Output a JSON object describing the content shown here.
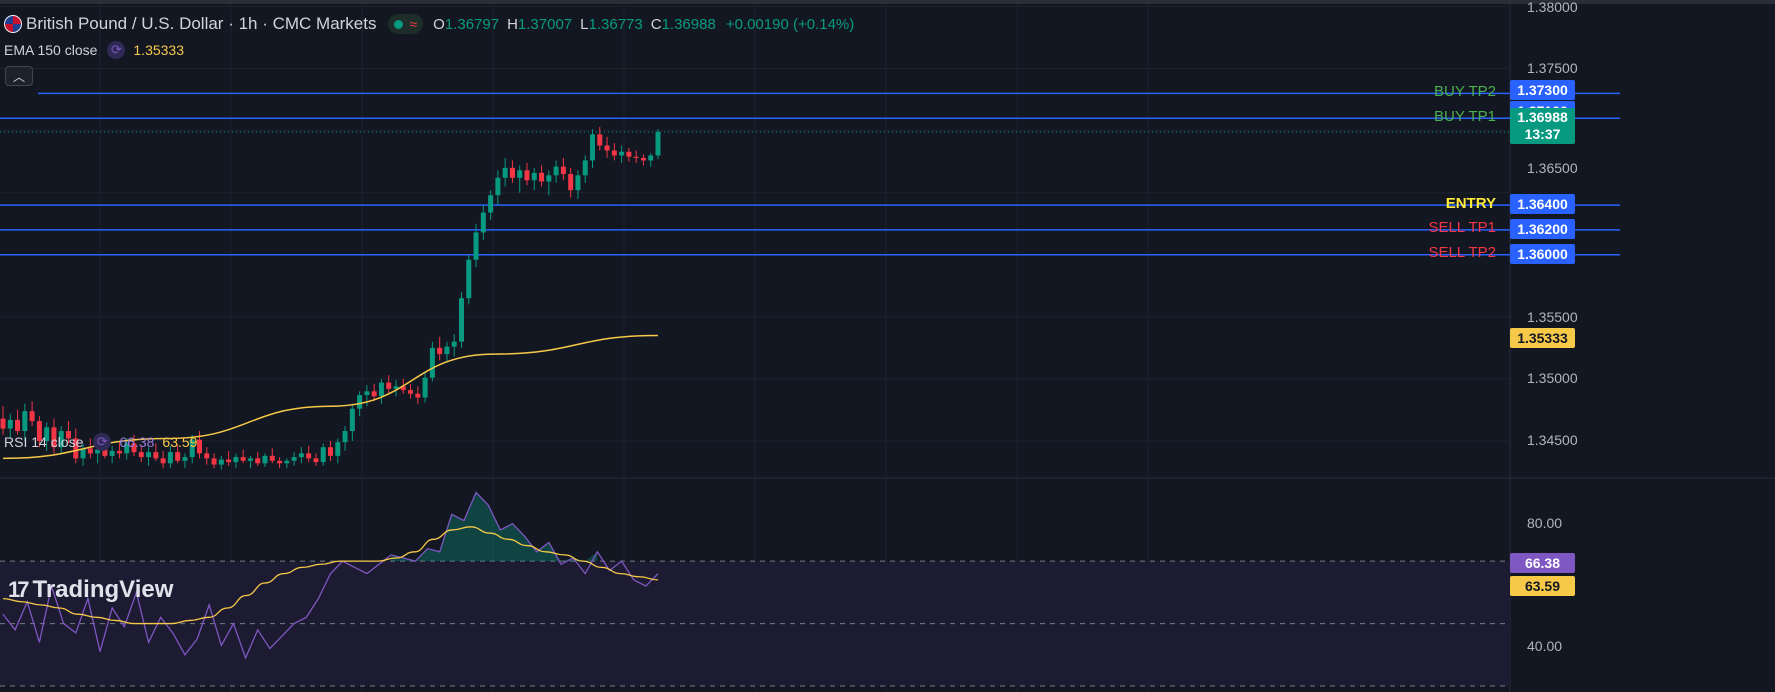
{
  "header": {
    "symbol": "British Pound / U.S. Dollar · 1h · CMC Markets",
    "open_label": "O",
    "open": "1.36797",
    "high_label": "H",
    "high": "1.37007",
    "low_label": "L",
    "low": "1.36773",
    "close_label": "C",
    "close": "1.36988",
    "change": "+0.00190 (+0.14%)",
    "status_icon": "market-open-dot",
    "wave_icon": "wave-icon",
    "flag_icon": "uk-us-flag-icon"
  },
  "ema": {
    "label": "EMA 150 close",
    "value": "1.35333",
    "color": "#f7c948"
  },
  "rsi": {
    "label": "RSI 14 close",
    "value": "66.38",
    "ma_value": "63.59",
    "color": "#7e57c2",
    "ma_color": "#f7c948"
  },
  "price_axis": [
    "1.38000",
    "1.37500",
    "1.36500",
    "1.35500",
    "1.35000",
    "1.34500"
  ],
  "rsi_axis": [
    "80.00",
    "40.00"
  ],
  "levels": [
    {
      "name": "BUY TP2",
      "price": "1.37300",
      "color": "#4caf50"
    },
    {
      "name": "BUY TP1",
      "price": "1.37100",
      "color": "#4caf50"
    },
    {
      "name": "ENTRY",
      "price": "1.36400",
      "color": "#ffeb3b"
    },
    {
      "name": "SELL TP1",
      "price": "1.36200",
      "color": "#f23645"
    },
    {
      "name": "SELL TP2",
      "price": "1.36000",
      "color": "#f23645"
    }
  ],
  "current": {
    "price": "1.36988",
    "countdown": "13:37",
    "color": "#089981"
  },
  "ema_tag": "1.35333",
  "rsi_tag": "66.38",
  "rsi_ma_tag": "63.59",
  "brand": "TradingView",
  "chart_data": {
    "type": "candlestick",
    "ema_last": 1.35333,
    "ylim": [
      1.3425,
      1.3802
    ],
    "candles": [
      [
        1.3468,
        1.3478,
        1.3455,
        1.346
      ],
      [
        1.346,
        1.3472,
        1.3452,
        1.3467
      ],
      [
        1.3467,
        1.3475,
        1.3455,
        1.3458
      ],
      [
        1.3458,
        1.348,
        1.345,
        1.3474
      ],
      [
        1.3474,
        1.3482,
        1.3462,
        1.3466
      ],
      [
        1.3466,
        1.347,
        1.3445,
        1.345
      ],
      [
        1.345,
        1.3465,
        1.3442,
        1.3461
      ],
      [
        1.3461,
        1.3468,
        1.344,
        1.3445
      ],
      [
        1.3445,
        1.3462,
        1.344,
        1.3458
      ],
      [
        1.3458,
        1.3466,
        1.3448,
        1.3452
      ],
      [
        1.3452,
        1.346,
        1.3432,
        1.3436
      ],
      [
        1.3436,
        1.3448,
        1.343,
        1.3444
      ],
      [
        1.3444,
        1.3452,
        1.3436,
        1.344
      ],
      [
        1.344,
        1.3446,
        1.3432,
        1.3443
      ],
      [
        1.3443,
        1.3452,
        1.3436,
        1.3438
      ],
      [
        1.3438,
        1.3446,
        1.3432,
        1.3442
      ],
      [
        1.3442,
        1.3449,
        1.3436,
        1.344
      ],
      [
        1.344,
        1.3452,
        1.3435,
        1.3448
      ],
      [
        1.3448,
        1.3455,
        1.3438,
        1.3441
      ],
      [
        1.3441,
        1.3446,
        1.3433,
        1.3437
      ],
      [
        1.3437,
        1.3445,
        1.343,
        1.3441
      ],
      [
        1.3441,
        1.3448,
        1.3434,
        1.3436
      ],
      [
        1.3436,
        1.3442,
        1.3428,
        1.3432
      ],
      [
        1.3432,
        1.3446,
        1.3428,
        1.3441
      ],
      [
        1.3441,
        1.3447,
        1.3432,
        1.3434
      ],
      [
        1.3434,
        1.344,
        1.3428,
        1.3437
      ],
      [
        1.3437,
        1.3455,
        1.3432,
        1.3451
      ],
      [
        1.3451,
        1.3458,
        1.3436,
        1.344
      ],
      [
        1.344,
        1.3445,
        1.3431,
        1.3436
      ],
      [
        1.3436,
        1.344,
        1.3428,
        1.3431
      ],
      [
        1.3431,
        1.3438,
        1.3427,
        1.3435
      ],
      [
        1.3435,
        1.3442,
        1.343,
        1.3433
      ],
      [
        1.3433,
        1.344,
        1.3428,
        1.3437
      ],
      [
        1.3437,
        1.3443,
        1.3432,
        1.3434
      ],
      [
        1.3434,
        1.3438,
        1.3428,
        1.3436
      ],
      [
        1.3436,
        1.3441,
        1.343,
        1.3432
      ],
      [
        1.3432,
        1.344,
        1.3429,
        1.3438
      ],
      [
        1.3438,
        1.3444,
        1.3432,
        1.3434
      ],
      [
        1.3434,
        1.3437,
        1.3428,
        1.3432
      ],
      [
        1.3432,
        1.3436,
        1.3428,
        1.3434
      ],
      [
        1.3434,
        1.3441,
        1.343,
        1.3437
      ],
      [
        1.3437,
        1.3445,
        1.3432,
        1.344
      ],
      [
        1.344,
        1.3446,
        1.3433,
        1.3436
      ],
      [
        1.3436,
        1.344,
        1.343,
        1.3433
      ],
      [
        1.3433,
        1.3448,
        1.343,
        1.3445
      ],
      [
        1.3445,
        1.345,
        1.3434,
        1.3438
      ],
      [
        1.3438,
        1.3452,
        1.3432,
        1.3449
      ],
      [
        1.3449,
        1.3462,
        1.3442,
        1.3458
      ],
      [
        1.3458,
        1.348,
        1.345,
        1.3476
      ],
      [
        1.3476,
        1.349,
        1.347,
        1.3487
      ],
      [
        1.3487,
        1.3495,
        1.3478,
        1.349
      ],
      [
        1.349,
        1.3496,
        1.3482,
        1.3486
      ],
      [
        1.3486,
        1.35,
        1.348,
        1.3497
      ],
      [
        1.3497,
        1.3503,
        1.3488,
        1.3492
      ],
      [
        1.3492,
        1.3499,
        1.3486,
        1.3494
      ],
      [
        1.3494,
        1.35,
        1.3488,
        1.3491
      ],
      [
        1.3491,
        1.3496,
        1.3484,
        1.3488
      ],
      [
        1.3488,
        1.3494,
        1.348,
        1.3485
      ],
      [
        1.3485,
        1.3505,
        1.3481,
        1.3501
      ],
      [
        1.3501,
        1.353,
        1.3498,
        1.3525
      ],
      [
        1.3525,
        1.3534,
        1.3515,
        1.352
      ],
      [
        1.352,
        1.353,
        1.3514,
        1.3526
      ],
      [
        1.3526,
        1.3536,
        1.3518,
        1.353
      ],
      [
        1.353,
        1.357,
        1.3525,
        1.3565
      ],
      [
        1.3565,
        1.36,
        1.356,
        1.3596
      ],
      [
        1.3596,
        1.3625,
        1.359,
        1.3618
      ],
      [
        1.3618,
        1.364,
        1.3612,
        1.3634
      ],
      [
        1.3634,
        1.3652,
        1.3628,
        1.3648
      ],
      [
        1.3648,
        1.3668,
        1.364,
        1.3662
      ],
      [
        1.3662,
        1.3678,
        1.3655,
        1.367
      ],
      [
        1.367,
        1.3676,
        1.3658,
        1.3662
      ],
      [
        1.3662,
        1.3672,
        1.365,
        1.3668
      ],
      [
        1.3668,
        1.3674,
        1.3656,
        1.366
      ],
      [
        1.366,
        1.367,
        1.3652,
        1.3666
      ],
      [
        1.3666,
        1.3672,
        1.3655,
        1.3659
      ],
      [
        1.3659,
        1.3668,
        1.3648,
        1.3664
      ],
      [
        1.3664,
        1.3676,
        1.3658,
        1.3671
      ],
      [
        1.3671,
        1.3678,
        1.366,
        1.3665
      ],
      [
        1.3665,
        1.367,
        1.3646,
        1.3652
      ],
      [
        1.3652,
        1.3668,
        1.3645,
        1.3664
      ],
      [
        1.3664,
        1.368,
        1.3658,
        1.3676
      ],
      [
        1.3676,
        1.3701,
        1.367,
        1.3697
      ],
      [
        1.3697,
        1.3703,
        1.3684,
        1.3688
      ],
      [
        1.3688,
        1.3695,
        1.3678,
        1.3684
      ],
      [
        1.3684,
        1.369,
        1.3676,
        1.368
      ],
      [
        1.368,
        1.3688,
        1.3674,
        1.3683
      ],
      [
        1.3683,
        1.3686,
        1.3675,
        1.3679
      ],
      [
        1.3679,
        1.3684,
        1.3674,
        1.3678
      ],
      [
        1.3678,
        1.3681,
        1.3672,
        1.3676
      ],
      [
        1.3676,
        1.3682,
        1.3671,
        1.368
      ],
      [
        1.368,
        1.3701,
        1.3677,
        1.3699
      ]
    ],
    "ema": [
      1.3436,
      1.3452,
      1.3478,
      1.352,
      1.3535
    ],
    "rsi": [
      53,
      48,
      57,
      44,
      62,
      50,
      47,
      58,
      41,
      55,
      49,
      60,
      44,
      52,
      47,
      40,
      45,
      56,
      43,
      50,
      39,
      48,
      42,
      46,
      50,
      52,
      58,
      66,
      70,
      68,
      66,
      69,
      72,
      71,
      70,
      74,
      73,
      85,
      83,
      92,
      88,
      80,
      82,
      78,
      73,
      76,
      69,
      71,
      66,
      73,
      67,
      70,
      64,
      62,
      66
    ],
    "rsi_ma": [
      58,
      57,
      56,
      55,
      53,
      52,
      51,
      50,
      50,
      50,
      51,
      52,
      55,
      59,
      63,
      66,
      68,
      69,
      70,
      70,
      70,
      71,
      73,
      77,
      80,
      81,
      79,
      77,
      75,
      73,
      72,
      70,
      68,
      66,
      65,
      64
    ],
    "rsi_ylim": [
      30,
      96
    ]
  }
}
